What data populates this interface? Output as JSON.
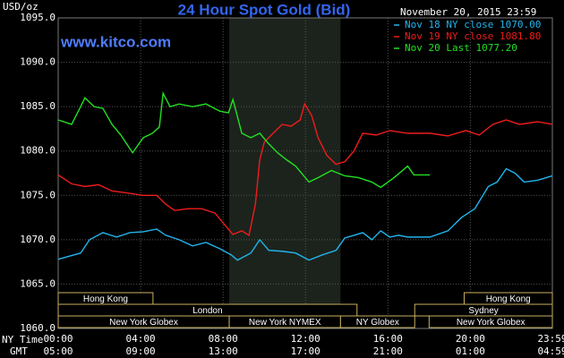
{
  "chart_data": {
    "type": "line",
    "title": "24 Hour Spot Gold (Bid)",
    "y_label": "USD/oz",
    "site": "www.kitco.com",
    "timestamp": "November 20, 2015 23:59",
    "x_row_labels": [
      "NY Time",
      "GMT"
    ],
    "xlim": [
      0,
      23.98
    ],
    "xticks": [
      {
        "value": 0,
        "label": "00:00"
      },
      {
        "value": 4,
        "label": "04:00"
      },
      {
        "value": 8,
        "label": "08:00"
      },
      {
        "value": 12,
        "label": "12:00"
      },
      {
        "value": 16,
        "label": "16:00"
      },
      {
        "value": 20,
        "label": "20:00"
      },
      {
        "value": 23.98,
        "label": "23:59"
      }
    ],
    "xtick_labels_gmt": [
      "05:00",
      "09:00",
      "13:00",
      "17:00",
      "21:00",
      "01:00",
      "04:59"
    ],
    "ylim": [
      1060,
      1095
    ],
    "yticks": [
      {
        "value": 1060,
        "label": "1060.0"
      },
      {
        "value": 1065,
        "label": "1065.0"
      },
      {
        "value": 1070,
        "label": "1070.0"
      },
      {
        "value": 1075,
        "label": "1075.0"
      },
      {
        "value": 1080,
        "label": "1080.0"
      },
      {
        "value": 1085,
        "label": "1085.0"
      },
      {
        "value": 1090,
        "label": "1090.0"
      },
      {
        "value": 1095,
        "label": "1095.0"
      }
    ],
    "grid": true,
    "sessions": [
      {
        "label": "Hong Kong",
        "start": 0,
        "end": 4.6,
        "row": 0
      },
      {
        "label": "London",
        "start": 0,
        "end": 14.5,
        "row": 1
      },
      {
        "label": "New York Globex",
        "start": 0,
        "end": 8.3,
        "row": 2
      },
      {
        "label": "New York NYMEX",
        "start": 8.3,
        "end": 13.7,
        "row": 2,
        "shade": true
      },
      {
        "label": "NY Globex",
        "start": 13.7,
        "end": 17.3,
        "row": 2
      },
      {
        "label": "Sydney",
        "start": 17.3,
        "end": 23.98,
        "row": 1
      },
      {
        "label": "Hong Kong",
        "start": 19.7,
        "end": 23.98,
        "row": 0
      },
      {
        "label": "New York Globex",
        "start": 18.0,
        "end": 23.98,
        "row": 2
      }
    ],
    "series": [
      {
        "name": "Nov 18 NY close 1070.00",
        "color": "#22b4ee",
        "x": [
          0,
          1.09,
          1.52,
          2.17,
          2.83,
          3.48,
          4.13,
          4.78,
          5.22,
          5.87,
          6.52,
          7.17,
          7.83,
          8.39,
          8.7,
          9.35,
          9.78,
          10.22,
          10.87,
          11.52,
          12.17,
          12.83,
          13.48,
          13.91,
          14.35,
          14.78,
          15.22,
          15.65,
          16.09,
          16.52,
          16.96,
          18.04,
          18.91,
          19.57,
          20.22,
          20.87,
          21.3,
          21.74,
          22.17,
          22.61,
          23.26,
          23.98
        ],
        "values": [
          1067.8,
          1068.5,
          1070.0,
          1070.8,
          1070.3,
          1070.8,
          1070.9,
          1071.2,
          1070.5,
          1070.0,
          1069.3,
          1069.7,
          1069.0,
          1068.3,
          1067.7,
          1068.5,
          1070.0,
          1068.8,
          1068.7,
          1068.5,
          1067.7,
          1068.3,
          1068.8,
          1070.2,
          1070.5,
          1070.8,
          1070.0,
          1071.0,
          1070.3,
          1070.5,
          1070.3,
          1070.3,
          1071.0,
          1072.5,
          1073.5,
          1076.0,
          1076.5,
          1078.0,
          1077.5,
          1076.5,
          1076.7,
          1077.2
        ]
      },
      {
        "name": "Nov 19 NY close 1081.80",
        "color": "#ee1c1c",
        "x": [
          0,
          0.65,
          1.3,
          1.96,
          2.61,
          3.26,
          4.13,
          4.78,
          5.22,
          5.65,
          6.3,
          6.96,
          7.61,
          8.04,
          8.48,
          8.91,
          9.26,
          9.57,
          9.78,
          10.0,
          10.43,
          10.87,
          11.3,
          11.74,
          11.96,
          12.3,
          12.61,
          13.04,
          13.48,
          13.91,
          14.35,
          14.78,
          15.43,
          16.09,
          16.96,
          18.04,
          18.91,
          19.78,
          20.43,
          21.09,
          21.74,
          22.39,
          23.26,
          23.98
        ],
        "values": [
          1077.3,
          1076.3,
          1076.0,
          1076.2,
          1075.5,
          1075.3,
          1075.0,
          1075.0,
          1074.0,
          1073.3,
          1073.5,
          1073.5,
          1073.0,
          1071.8,
          1070.6,
          1071.0,
          1070.5,
          1074.0,
          1079.0,
          1081.0,
          1082.0,
          1083.0,
          1082.8,
          1083.5,
          1085.3,
          1084.0,
          1081.5,
          1079.5,
          1078.5,
          1078.8,
          1080.0,
          1082.0,
          1081.8,
          1082.3,
          1082.0,
          1082.0,
          1081.7,
          1082.3,
          1081.8,
          1083.0,
          1083.5,
          1083.0,
          1083.3,
          1083.0
        ]
      },
      {
        "name": "Nov 20 Last 1077.20",
        "color": "#22e022",
        "x": [
          0,
          0.65,
          1.09,
          1.3,
          1.74,
          2.17,
          2.61,
          3.04,
          3.61,
          4.13,
          4.57,
          4.91,
          5.09,
          5.43,
          5.87,
          6.52,
          7.17,
          7.83,
          8.26,
          8.48,
          8.91,
          9.35,
          9.78,
          10.22,
          10.65,
          11.09,
          11.52,
          12.17,
          12.61,
          13.26,
          13.91,
          14.57,
          15.22,
          15.65,
          16.3,
          16.96,
          17.26,
          18.04
        ],
        "values": [
          1083.5,
          1083.0,
          1085.0,
          1086.0,
          1085.0,
          1084.8,
          1083.0,
          1081.8,
          1079.8,
          1081.5,
          1082.0,
          1082.7,
          1086.5,
          1085.0,
          1085.3,
          1085.0,
          1085.3,
          1084.5,
          1084.3,
          1085.8,
          1082.0,
          1081.5,
          1082.0,
          1080.8,
          1079.8,
          1079.0,
          1078.3,
          1076.5,
          1077.0,
          1077.8,
          1077.2,
          1077.0,
          1076.5,
          1075.9,
          1077.0,
          1078.3,
          1077.3,
          1077.3
        ]
      }
    ]
  }
}
